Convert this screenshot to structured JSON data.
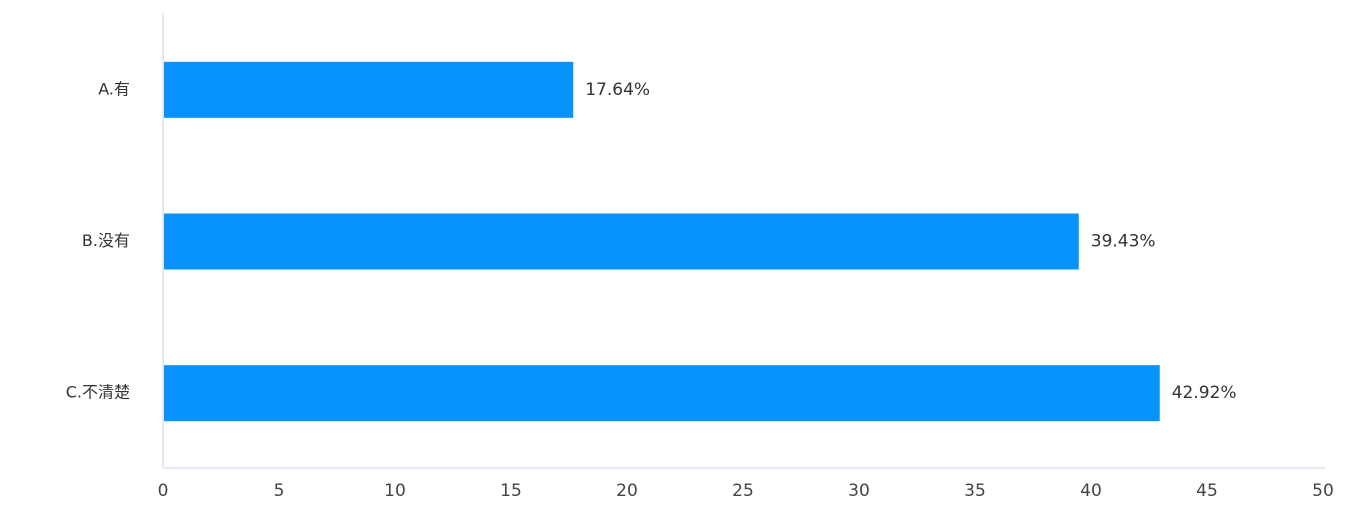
{
  "chart_data": {
    "type": "bar",
    "orientation": "horizontal",
    "categories": [
      "A.有",
      "B.没有",
      "C.不清楚"
    ],
    "values": [
      17.64,
      39.43,
      42.92
    ],
    "value_labels": [
      "17.64%",
      "39.43%",
      "42.92%"
    ],
    "color": "#0793fb",
    "xlim": [
      0,
      50
    ],
    "xticks": [
      0,
      5,
      10,
      15,
      20,
      25,
      30,
      35,
      40,
      45,
      50
    ]
  }
}
